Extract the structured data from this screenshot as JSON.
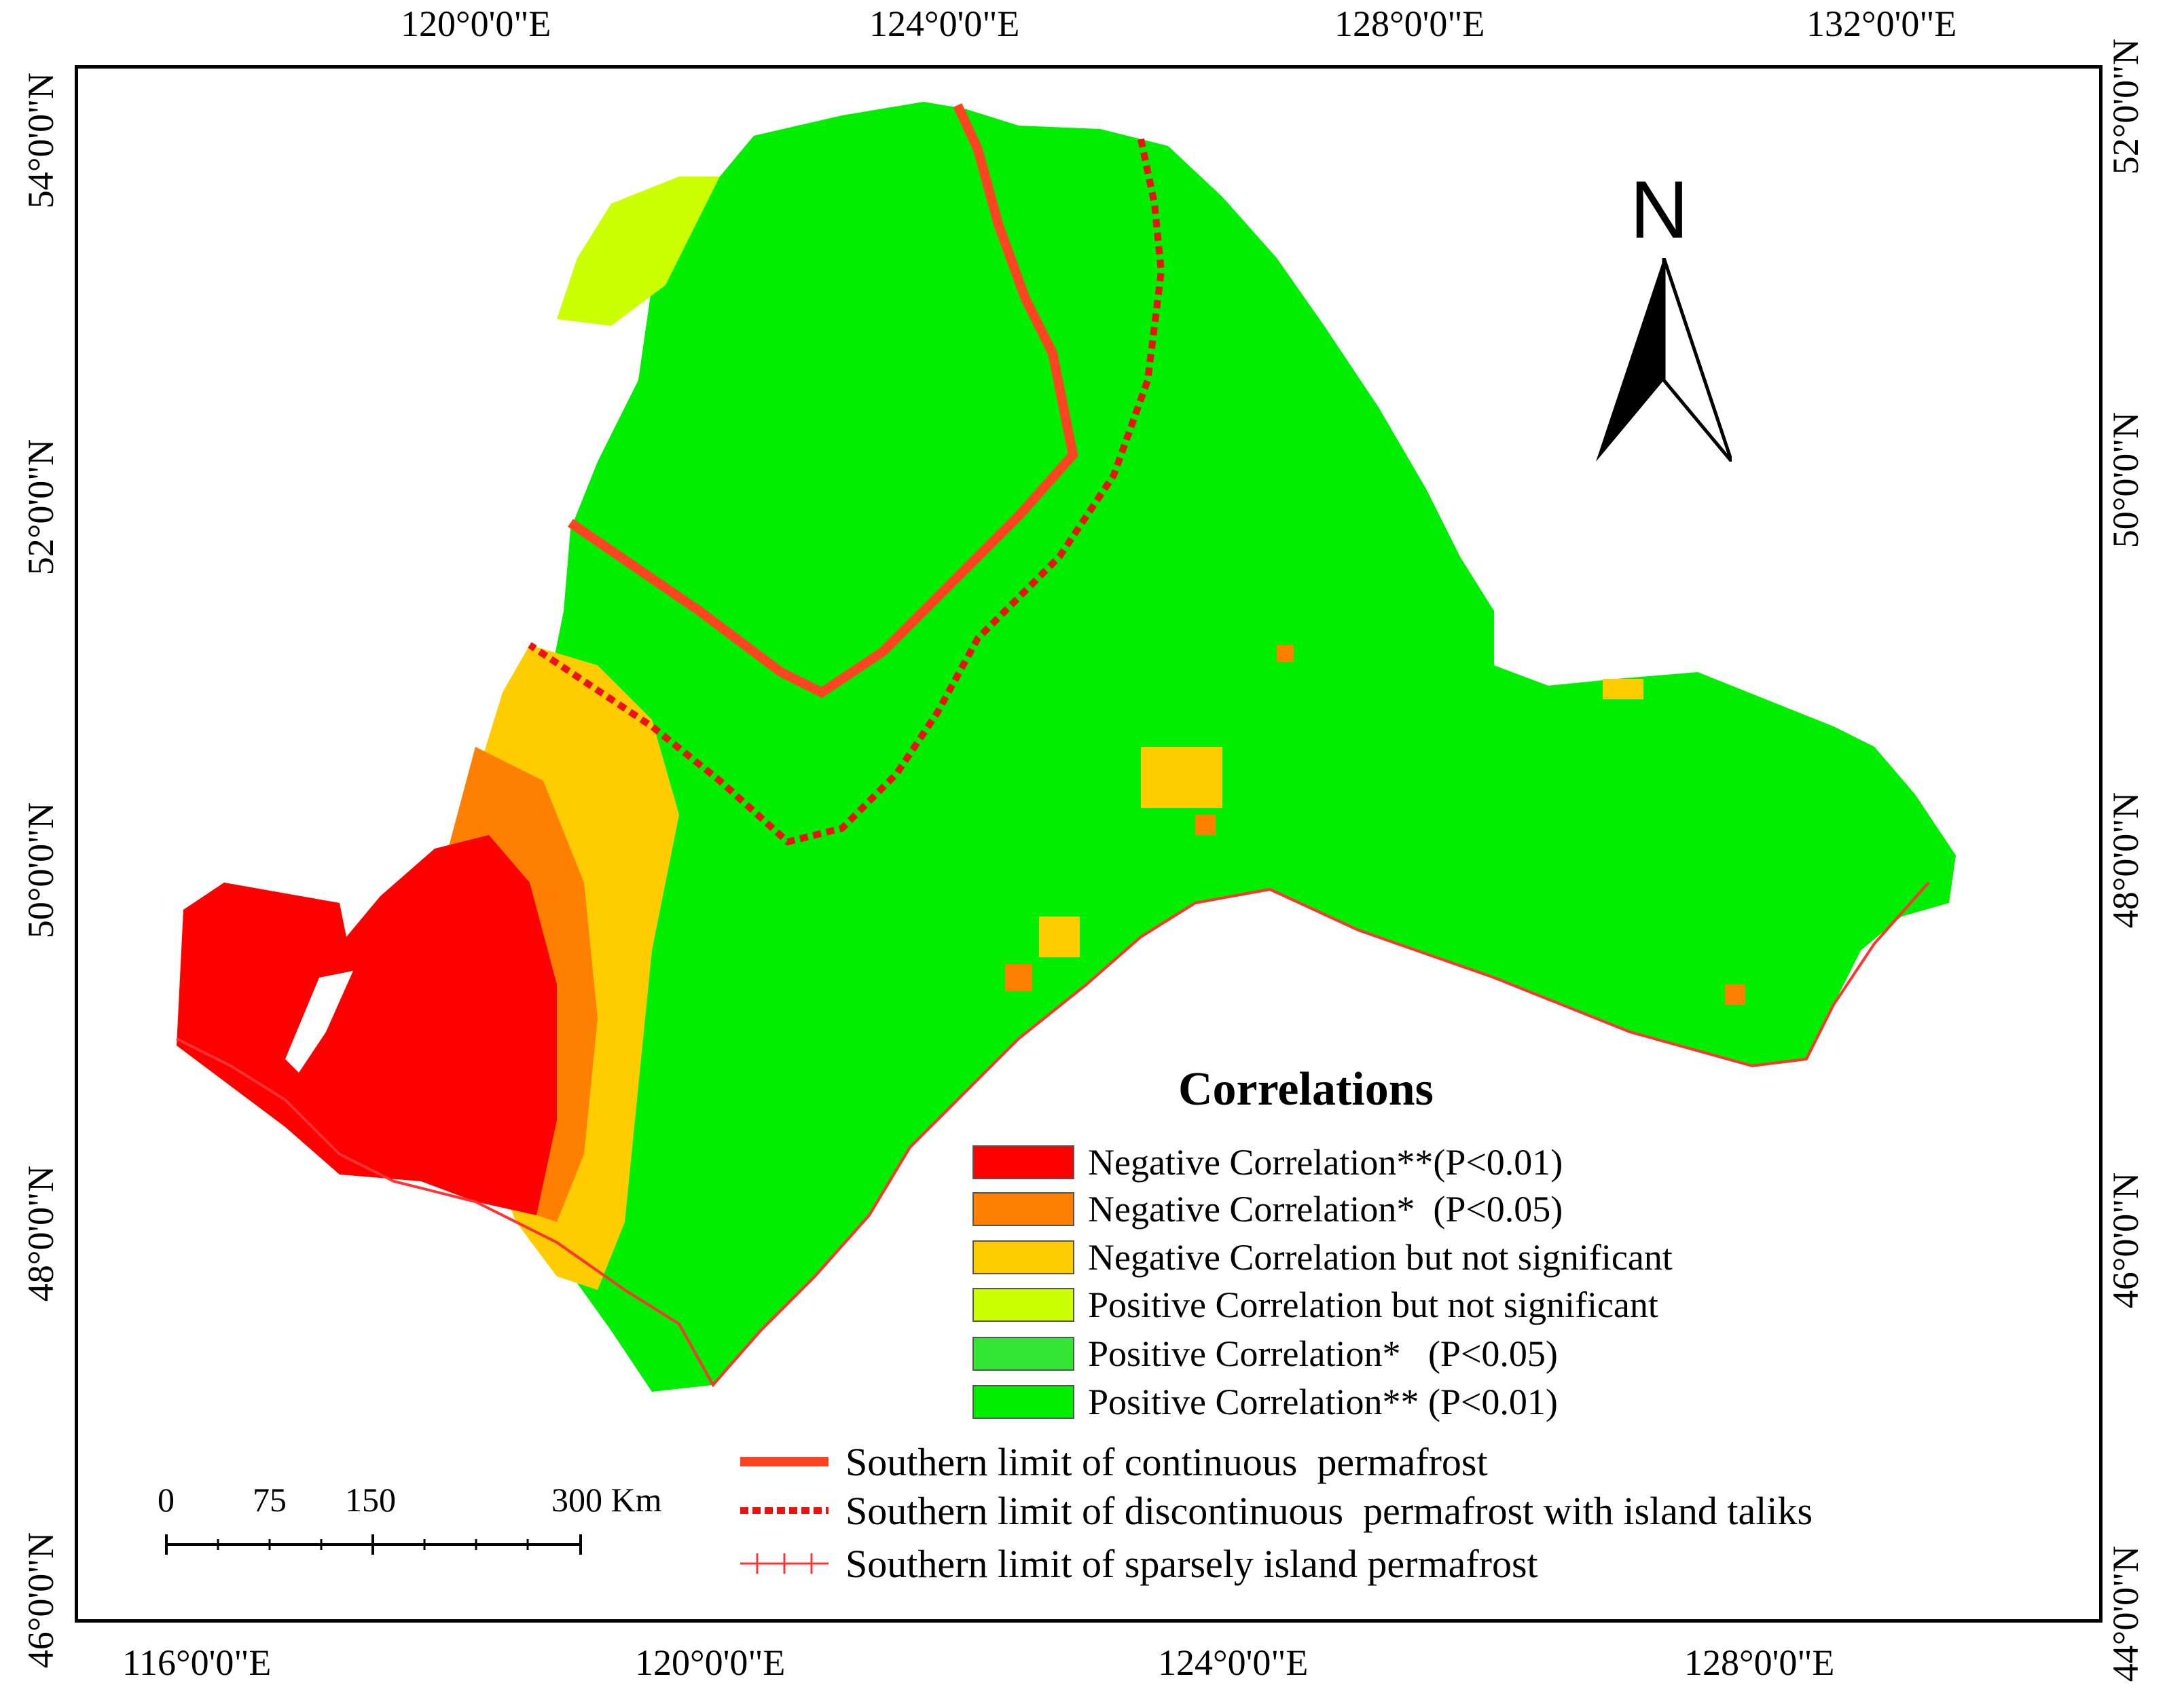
{
  "axes": {
    "top": [
      "120°0'0\"E",
      "124°0'0\"E",
      "128°0'0\"E",
      "132°0'0\"E"
    ],
    "bottom": [
      "116°0'0\"E",
      "120°0'0\"E",
      "124°0'0\"E",
      "128°0'0\"E"
    ],
    "left": [
      "54°0'0\"N",
      "52°0'0\"N",
      "50°0'0\"N",
      "48°0'0\"N",
      "46°0'0\"N"
    ],
    "right": [
      "52°0'0\"N",
      "50°0'0\"N",
      "48°0'0\"N",
      "46°0'0\"N",
      "44°0'0\"N"
    ]
  },
  "north_arrow": {
    "label": "N"
  },
  "legend": {
    "title": "Correlations",
    "items": [
      {
        "label": "Negative Correlation**(P<0.01)",
        "color": "#ff0000"
      },
      {
        "label": "Negative Correlation*  (P<0.05)",
        "color": "#ff8000"
      },
      {
        "label": "Negative Correlation but not significant",
        "color": "#ffcc00"
      },
      {
        "label": "Positive Correlation but not significant",
        "color": "#ccff00"
      },
      {
        "label": "Positive Correlation*   (P<0.05)",
        "color": "#33e633"
      },
      {
        "label": "Positive Correlation** (P<0.01)",
        "color": "#00ee00"
      }
    ],
    "limits": [
      {
        "label": "Southern limit of continuous  permafrost",
        "style": "solid",
        "color": "#ff4422"
      },
      {
        "label": "Southern limit of discontinuous  permafrost with island taliks",
        "style": "dashed",
        "color": "#ee1111"
      },
      {
        "label": "Southern limit of sparsely island permafrost",
        "style": "cross",
        "color": "#ff3333"
      }
    ]
  },
  "scale_bar": {
    "labels": [
      "0",
      "75",
      "150",
      "300 Km"
    ]
  }
}
